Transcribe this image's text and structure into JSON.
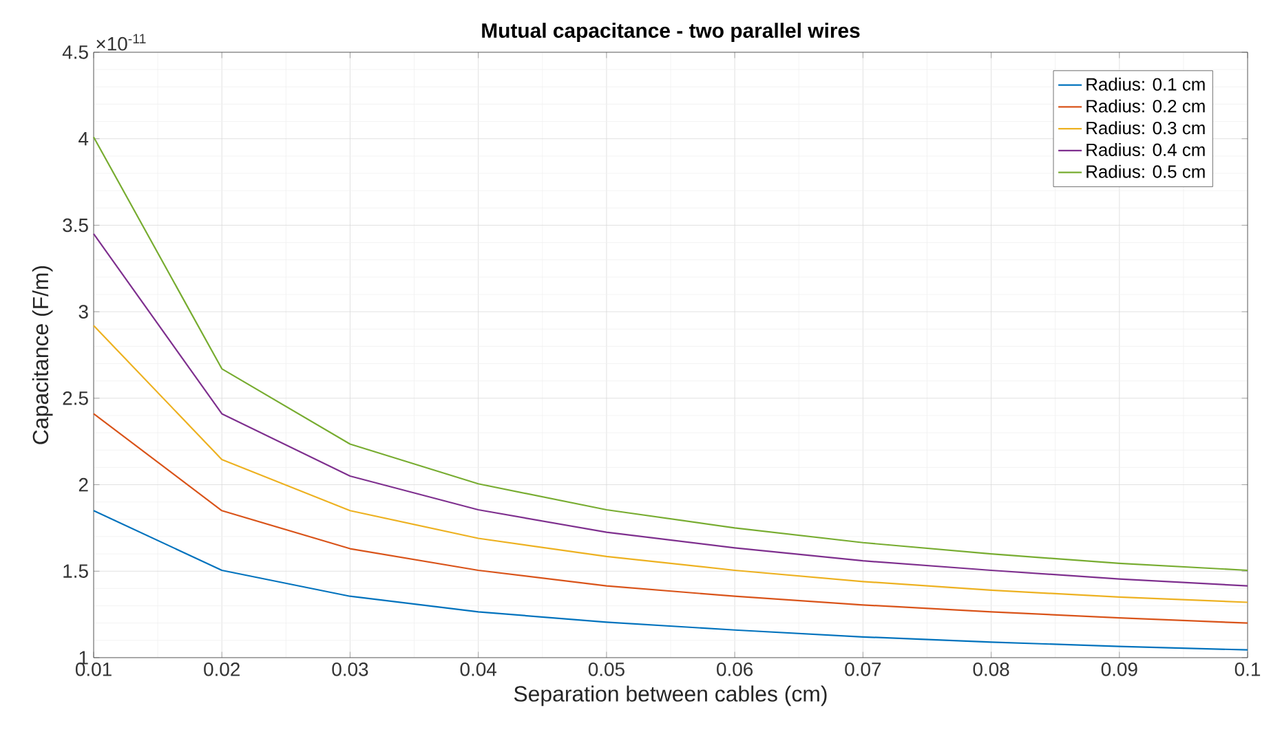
{
  "chart_data": {
    "type": "line",
    "title": "Mutual capacitance - two parallel wires",
    "xlabel": "Separation between cables (cm)",
    "ylabel": "Capacitance (F/m)",
    "annotations": [
      "×10$^{-11}$"
    ],
    "x": [
      0.01,
      0.02,
      0.03,
      0.04,
      0.05,
      0.06,
      0.07,
      0.08,
      0.09,
      0.1
    ],
    "series": [
      {
        "name": "Radius: 0.1 cm",
        "color": "#0072bd",
        "values": [
          1.85,
          1.505,
          1.355,
          1.265,
          1.205,
          1.16,
          1.12,
          1.09,
          1.065,
          1.045
        ]
      },
      {
        "name": "Radius: 0.2 cm",
        "color": "#d95319",
        "values": [
          2.41,
          1.85,
          1.63,
          1.505,
          1.415,
          1.355,
          1.305,
          1.265,
          1.23,
          1.2
        ]
      },
      {
        "name": "Radius: 0.3 cm",
        "color": "#edb120",
        "values": [
          2.92,
          2.145,
          1.85,
          1.69,
          1.585,
          1.505,
          1.44,
          1.39,
          1.35,
          1.32
        ]
      },
      {
        "name": "Radius: 0.4 cm",
        "color": "#7e2f8e",
        "values": [
          3.45,
          2.41,
          2.05,
          1.855,
          1.725,
          1.635,
          1.56,
          1.505,
          1.455,
          1.415
        ]
      },
      {
        "name": "Radius: 0.5 cm",
        "color": "#77ac30",
        "values": [
          4.01,
          2.67,
          2.235,
          2.005,
          1.855,
          1.75,
          1.665,
          1.6,
          1.545,
          1.505
        ]
      }
    ],
    "xlim": [
      0.01,
      0.1
    ],
    "xticks": [
      0.01,
      0.02,
      0.03,
      0.04,
      0.05,
      0.06,
      0.07,
      0.08,
      0.09,
      0.1
    ],
    "ylim": [
      1,
      4.5
    ],
    "yticks": [
      1,
      1.5,
      2,
      2.5,
      3,
      3.5,
      4,
      4.5
    ],
    "grid": true,
    "legend": "top right",
    "marker": "none",
    "line_style": "solid"
  }
}
